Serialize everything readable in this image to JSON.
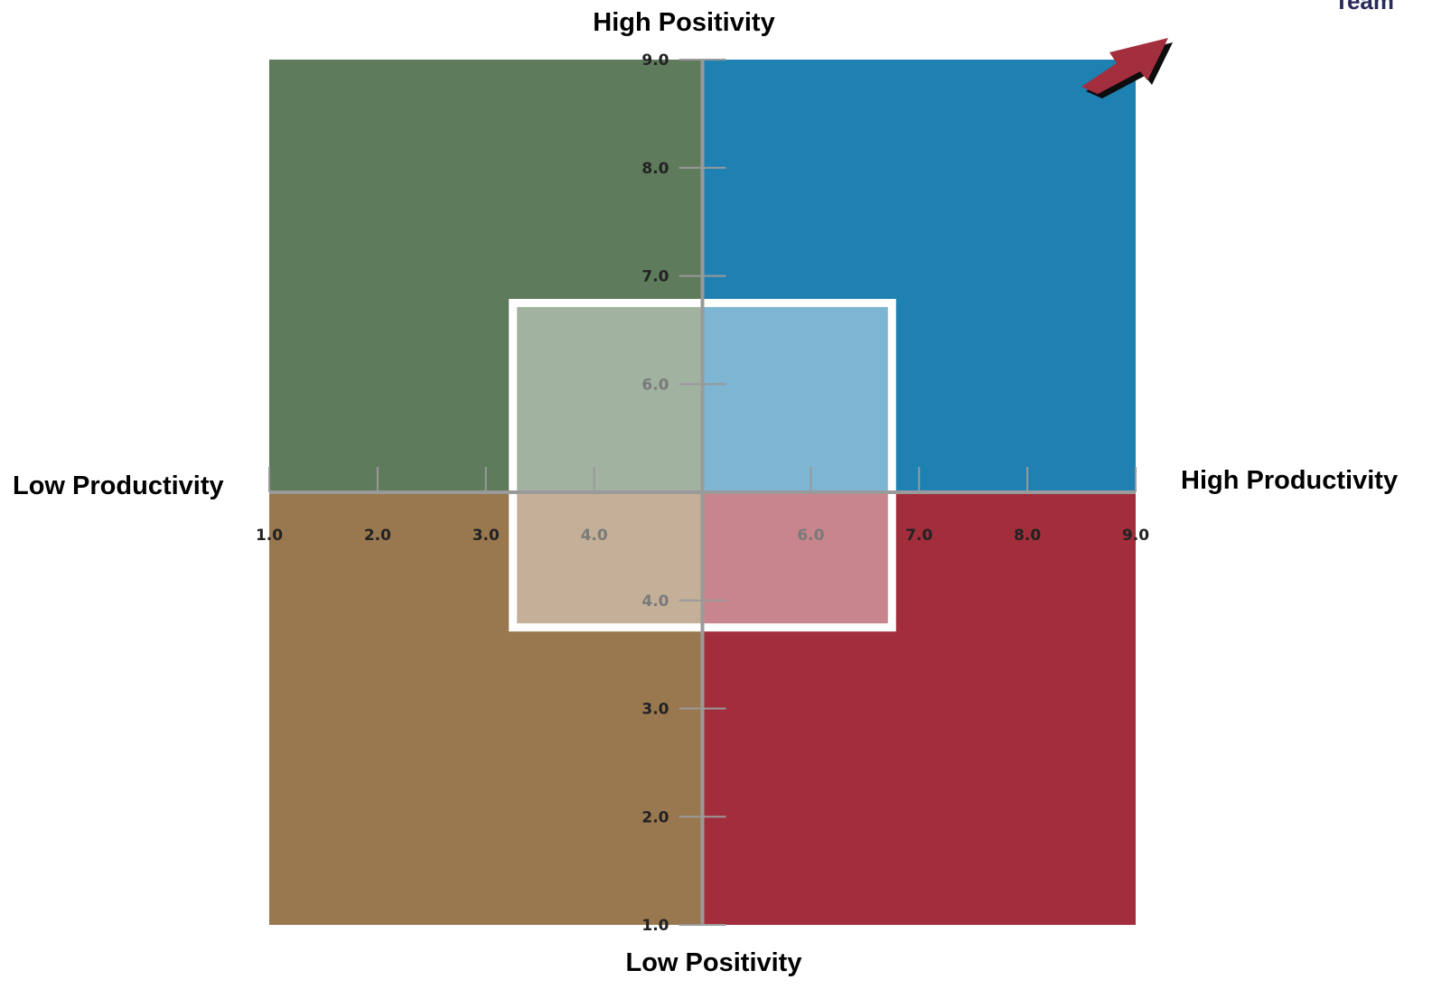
{
  "corner_text": "Team",
  "chart_data": {
    "type": "quadrant",
    "xlim": [
      1.0,
      9.0
    ],
    "ylim": [
      1.0,
      9.0
    ],
    "x_ticks": [
      "1.0",
      "2.0",
      "3.0",
      "4.0",
      "6.0",
      "7.0",
      "8.0",
      "9.0"
    ],
    "x_tick_values": [
      1,
      2,
      3,
      4,
      6,
      7,
      8,
      9
    ],
    "y_ticks": [
      "9.0",
      "8.0",
      "7.0",
      "6.0",
      "4.0",
      "3.0",
      "2.0",
      "1.0"
    ],
    "y_tick_values": [
      9,
      8,
      7,
      6,
      4,
      3,
      2,
      1
    ],
    "labels": {
      "top": "High Positivity",
      "bottom": "Low Positivity",
      "left": "Low Productivity",
      "right": "High Productivity"
    },
    "quadrants": [
      {
        "position": "top-left",
        "color": "#5e7b5c"
      },
      {
        "position": "top-right",
        "color": "#1f80b2"
      },
      {
        "position": "bottom-left",
        "color": "#99774f"
      },
      {
        "position": "bottom-right",
        "color": "#a22e3c"
      }
    ],
    "highlight_region": {
      "x": [
        3.25,
        6.75
      ],
      "y": [
        3.75,
        6.75
      ]
    },
    "arrow": {
      "direction": "top-right",
      "color": "#a32e3c"
    }
  }
}
